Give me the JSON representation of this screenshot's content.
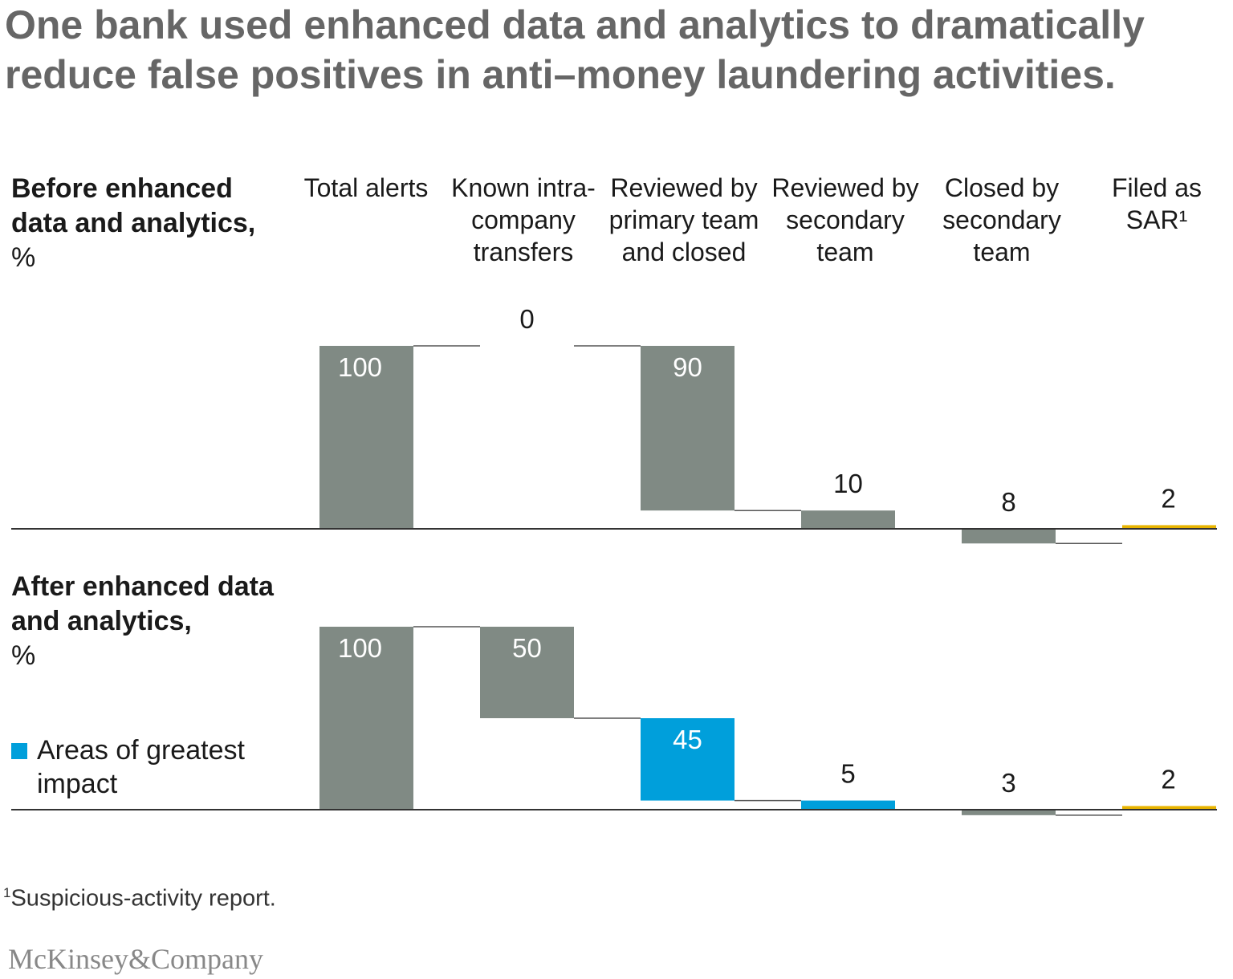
{
  "title": "One bank used enhanced data and analytics to dramatically reduce false positives in anti–money laundering activities.",
  "panels": {
    "before": {
      "label_bold": "Before enhanced data and analytics,",
      "label_unit": "%"
    },
    "after": {
      "label_bold": "After enhanced data and analytics,",
      "label_unit": "%"
    }
  },
  "legend": {
    "label": "Areas of greatest impact",
    "color": "#009fdb"
  },
  "footnote": {
    "marker": "1",
    "text": "Suspicious-activity report."
  },
  "brand": "McKinsey&Company",
  "colors": {
    "gray": "#808a84",
    "blue": "#009fdb",
    "yellow": "#e8b400",
    "axis": "#333333",
    "connector": "#555555"
  },
  "chart_data": [
    {
      "type": "bar",
      "subtype": "waterfall",
      "title": "Before enhanced data and analytics, %",
      "categories": [
        "Total alerts",
        "Known intra-company transfers",
        "Reviewed by primary team and closed",
        "Reviewed by secondary team",
        "Closed by secondary team",
        "Filed as SAR¹"
      ],
      "values": [
        100,
        0,
        90,
        10,
        8,
        2
      ],
      "highlight": [
        "gray",
        "gray",
        "gray",
        "gray",
        "gray",
        "yellow"
      ],
      "ylim": [
        0,
        100
      ]
    },
    {
      "type": "bar",
      "subtype": "waterfall",
      "title": "After enhanced data and analytics, %",
      "categories": [
        "Total alerts",
        "Known intra-company transfers",
        "Reviewed by primary team and closed",
        "Reviewed by secondary team",
        "Closed by secondary team",
        "Filed as SAR¹"
      ],
      "values": [
        100,
        50,
        45,
        5,
        3,
        2
      ],
      "highlight": [
        "gray",
        "gray",
        "blue",
        "blue",
        "gray",
        "yellow"
      ],
      "ylim": [
        0,
        100
      ]
    }
  ]
}
